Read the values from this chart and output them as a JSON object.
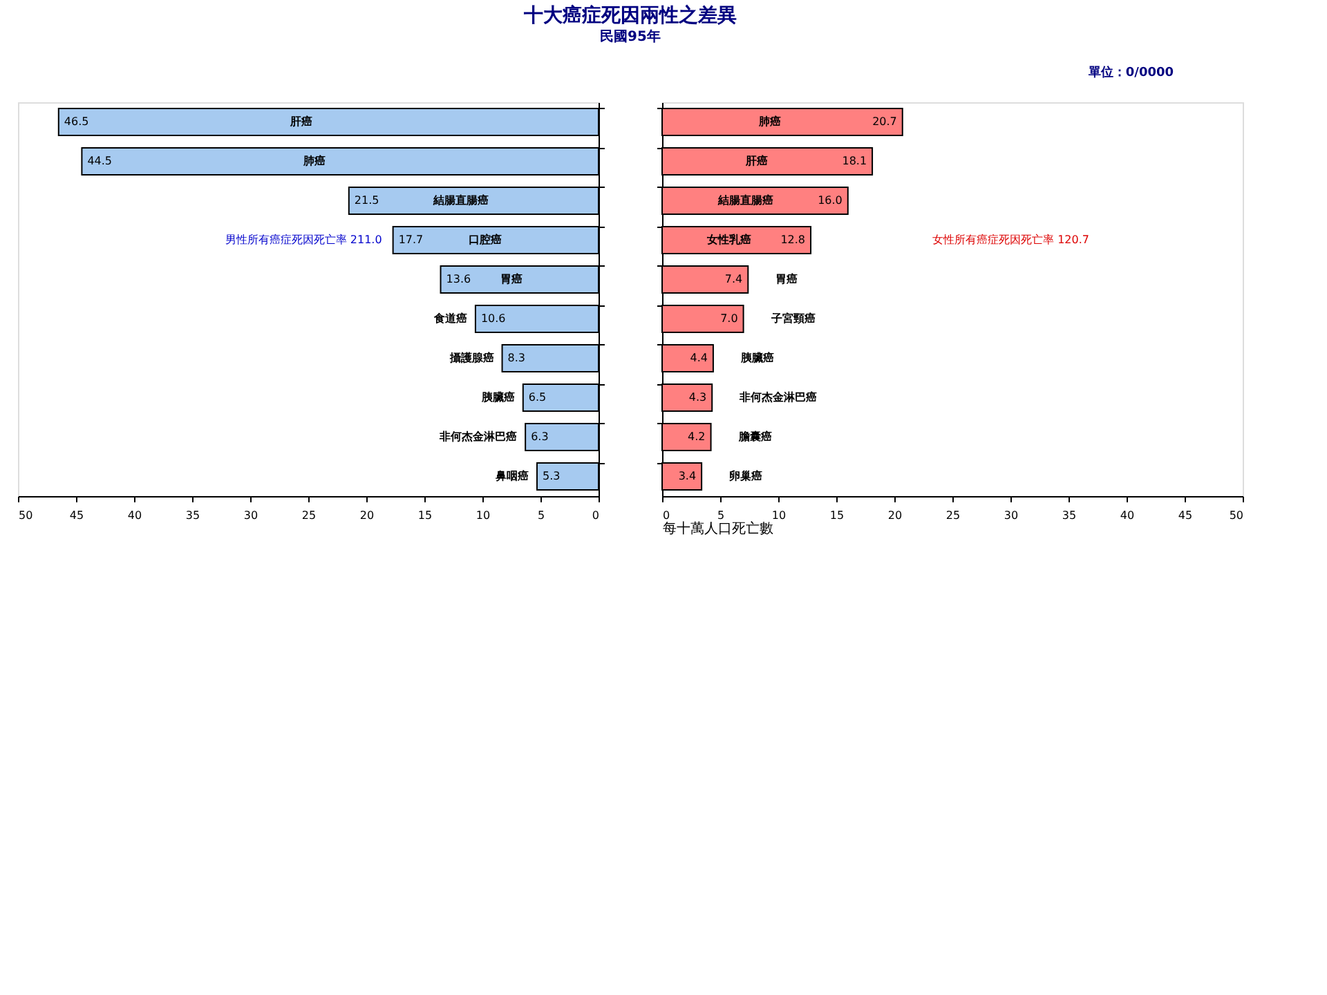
{
  "chart_data": [
    {
      "type": "bar",
      "orientation": "horizontal",
      "title": "十大癌症死因兩性之差異",
      "subtitle": "民國95年",
      "categories": [
        "肝癌",
        "肺癌",
        "結腸直腸癌",
        "口腔癌",
        "胃癌",
        "食道癌",
        "攝護腺癌",
        "胰臟癌",
        "非何杰金淋巴癌",
        "鼻咽癌"
      ],
      "values": [
        46.5,
        44.5,
        21.5,
        17.7,
        13.6,
        10.6,
        8.3,
        6.5,
        6.3,
        5.3
      ],
      "color": "#a6caf0",
      "xlim": [
        50,
        0
      ],
      "xticks": [
        50,
        45,
        40,
        35,
        30,
        25,
        20,
        15,
        10,
        5,
        0
      ],
      "value_labels": [
        "46.5",
        "44.5",
        "21.5",
        "17.7",
        "13.6",
        "10.6",
        "8.3",
        "6.5",
        "6.3",
        "5.3"
      ],
      "tick_labels": "x",
      "annotations": [
        "男性所有癌症死因死亡率 211.0"
      ]
    },
    {
      "type": "bar",
      "orientation": "horizontal",
      "xlabel": "每十萬人口死亡數",
      "categories": [
        "肺癌",
        "肝癌",
        "結腸直腸癌",
        "女性乳癌",
        "胃癌",
        "子宮頸癌",
        "胰臟癌",
        "非何杰金淋巴癌",
        "膽囊癌",
        "卵巢癌"
      ],
      "values": [
        20.7,
        18.1,
        16.0,
        12.8,
        7.4,
        7.0,
        4.4,
        4.3,
        4.2,
        3.4
      ],
      "color": "#ff8080",
      "xlim": [
        0,
        50
      ],
      "xticks": [
        0,
        5,
        10,
        15,
        20,
        25,
        30,
        35,
        40,
        45,
        50
      ],
      "value_labels": [
        "20.7",
        "18.1",
        "16.0",
        "12.8",
        "7.4",
        "7.0",
        "4.4",
        "4.3",
        "4.2",
        "3.4"
      ],
      "tick_labels": "x",
      "annotations": [
        "女性所有癌症死因死亡率 120.7",
        "單位：0/0000"
      ]
    }
  ]
}
